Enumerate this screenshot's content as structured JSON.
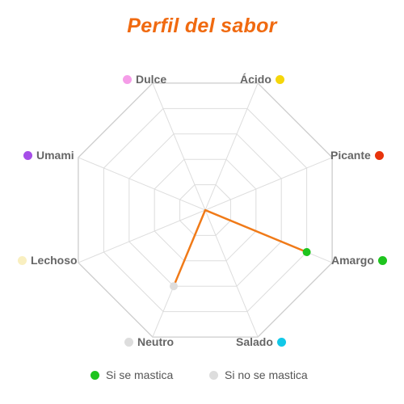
{
  "chart_data": {
    "type": "radar",
    "title": "Perfil del sabor",
    "axes": [
      {
        "label": "Ácido",
        "color": "#f5d60a"
      },
      {
        "label": "Picante",
        "color": "#e8340c"
      },
      {
        "label": "Amargo",
        "color": "#1ec41e"
      },
      {
        "label": "Salado",
        "color": "#12c8e8"
      },
      {
        "label": "Neutro",
        "color": "#dddddd"
      },
      {
        "label": "Lechoso",
        "color": "#f9efc0"
      },
      {
        "label": "Umami",
        "color": "#a64ee8"
      },
      {
        "label": "Dulce",
        "color": "#f59de8"
      }
    ],
    "range": [
      0,
      5
    ],
    "series": [
      {
        "values": [
          0,
          0,
          4,
          0,
          3,
          0,
          0,
          0
        ],
        "line_color": "#f07a18",
        "fill_color": "#fbd3b0",
        "point_colors": [
          null,
          null,
          "#1ec41e",
          null,
          "#dddddd",
          null,
          null,
          null
        ]
      }
    ],
    "legend": [
      {
        "label": "Si se mastica",
        "color": "#1ec41e"
      },
      {
        "label": "Si no se mastica",
        "color": "#dddddd"
      }
    ],
    "legend_position": "bottom",
    "grid": true
  }
}
